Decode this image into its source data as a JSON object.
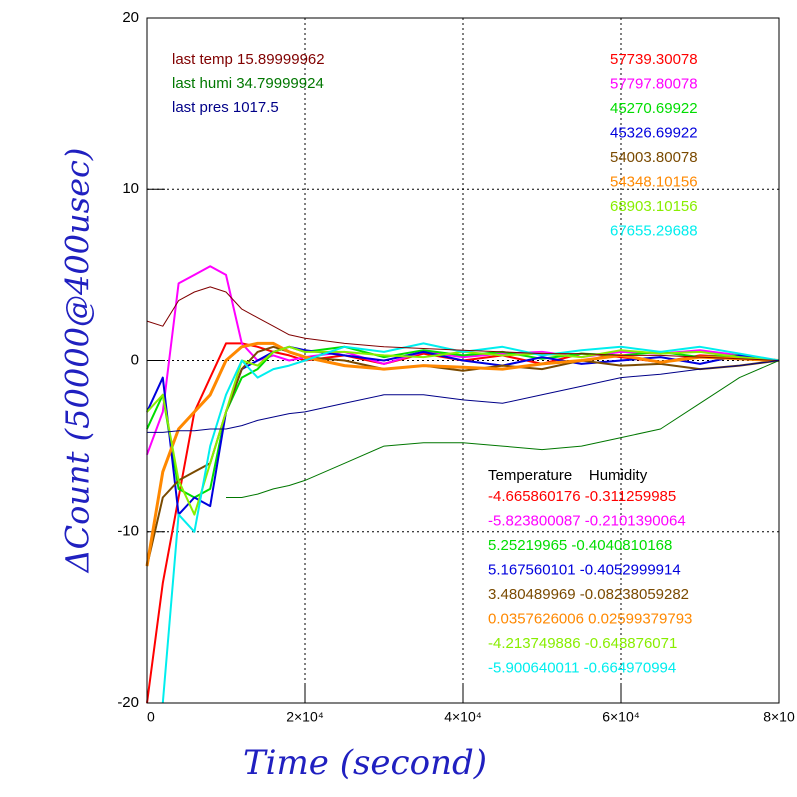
{
  "chart_data": {
    "type": "line",
    "x_label": "Time (second)",
    "y_label": "ΔCount (50000@400usec)",
    "x": [
      0,
      2000,
      4000,
      6000,
      8000,
      10000,
      12000,
      14000,
      16000,
      18000,
      20000,
      25000,
      30000,
      35000,
      40000,
      45000,
      50000,
      55000,
      60000,
      65000,
      70000,
      75000,
      80000
    ],
    "xlim": [
      0,
      80000
    ],
    "ylim": [
      -20,
      20
    ],
    "xticks": [
      0,
      {
        "value": 20000,
        "label": "2×10⁴"
      },
      {
        "value": 40000,
        "label": "4×10⁴"
      },
      {
        "value": 60000,
        "label": "6×10⁴"
      },
      {
        "value": 80000,
        "label": "8×10"
      }
    ],
    "yticks": [
      -20,
      -10,
      0,
      10,
      20
    ],
    "grid": true,
    "series": [
      {
        "color": "#ff0000",
        "width": 2,
        "values": [
          -20,
          -13,
          -8,
          -3,
          -1,
          1,
          1,
          0.8,
          0.5,
          0.3,
          0,
          0.3,
          -0.2,
          0.4,
          0,
          0.3,
          -0.2,
          0.4,
          0.2,
          -0.1,
          0.3,
          0.2,
          0
        ]
      },
      {
        "color": "#ff00ff",
        "width": 2,
        "values": [
          -5.5,
          -3,
          4.5,
          5,
          5.5,
          5,
          1,
          0,
          0.3,
          0,
          0.2,
          0.5,
          -0.2,
          0.5,
          0.2,
          0.4,
          0.5,
          0.2,
          0.5,
          0.4,
          0.6,
          0.3,
          0
        ]
      },
      {
        "color": "#00dd00",
        "width": 2,
        "values": [
          -4,
          -2,
          -7.5,
          -8,
          -7.5,
          -3,
          -1,
          -0.5,
          0.5,
          0.8,
          0.5,
          0.8,
          0.2,
          0.6,
          0.3,
          0.5,
          0.1,
          0.4,
          0.3,
          0.5,
          0.2,
          0.3,
          0
        ]
      },
      {
        "color": "#0000dd",
        "width": 2,
        "values": [
          -3,
          -1,
          -9,
          -8,
          -8.5,
          -3,
          -0.5,
          0,
          0.5,
          0.8,
          0.6,
          0.3,
          0,
          0.5,
          0,
          -0.3,
          0.2,
          -0.2,
          0,
          0.2,
          -0.2,
          0.3,
          0
        ]
      },
      {
        "color": "#7a4a00",
        "width": 2,
        "values": [
          -12,
          -8,
          -7,
          -6.5,
          -6,
          -3,
          -0.5,
          0.5,
          0.8,
          0.5,
          0.2,
          0,
          -0.5,
          -0.3,
          -0.6,
          -0.3,
          -0.5,
          0,
          -0.3,
          -0.2,
          -0.5,
          -0.3,
          0
        ]
      },
      {
        "color": "#ff8800",
        "width": 3,
        "values": [
          -12,
          -6.5,
          -4,
          -3,
          -2,
          0,
          0.8,
          1,
          1,
          0.5,
          0.2,
          -0.3,
          -0.5,
          -0.3,
          -0.4,
          -0.5,
          -0.2,
          0,
          0.3,
          -0.1,
          0.2,
          0.1,
          0
        ]
      },
      {
        "color": "#88ee00",
        "width": 2,
        "values": [
          -3,
          -2,
          -7,
          -9,
          -6,
          -3,
          0,
          -0.3,
          0.5,
          0.8,
          0.5,
          0.5,
          0.3,
          0.2,
          0.5,
          0.3,
          0.4,
          0.2,
          0.6,
          0.4,
          0.5,
          0.2,
          0
        ]
      },
      {
        "color": "#00eeee",
        "width": 2,
        "values": [
          null,
          -20,
          -9,
          -10,
          -5,
          -2,
          0,
          -1,
          -0.5,
          -0.3,
          0,
          0.8,
          0.5,
          1,
          0.5,
          0.8,
          0.3,
          0.6,
          0.8,
          0.5,
          0.8,
          0.4,
          0
        ]
      },
      {
        "color": "#800000",
        "width": 1,
        "values": [
          2.3,
          2,
          3.5,
          4,
          4.3,
          4,
          3,
          2.5,
          2,
          1.5,
          1.3,
          1,
          0.8,
          0.7,
          0.6,
          0.5,
          0.4,
          0.4,
          0.3,
          0.3,
          0.2,
          0.1,
          0
        ]
      },
      {
        "color": "#007700",
        "width": 1,
        "values": [
          null,
          null,
          null,
          null,
          null,
          -8,
          -8,
          -7.8,
          -7.5,
          -7.3,
          -7,
          -6,
          -5,
          -4.8,
          -4.8,
          -5,
          -5.2,
          -5,
          -4.5,
          -4,
          -2.5,
          -1,
          0
        ]
      },
      {
        "color": "#000088",
        "width": 1,
        "values": [
          -4.2,
          -4.2,
          -4.1,
          -4.1,
          -4,
          -4,
          -3.8,
          -3.5,
          -3.3,
          -3.1,
          -3,
          -2.5,
          -2,
          -2,
          -2.3,
          -2.5,
          -2,
          -1.5,
          -1,
          -0.8,
          -0.5,
          -0.3,
          0
        ]
      }
    ],
    "annotations_left": [
      {
        "text": "last temp 15.89999962",
        "color": "#800000"
      },
      {
        "text": "last humi 34.79999924",
        "color": "#007700"
      },
      {
        "text": "last pres 1017.5",
        "color": "#000088"
      }
    ],
    "annotations_right": [
      {
        "text": "57739.30078",
        "color": "#ff0000"
      },
      {
        "text": "57797.80078",
        "color": "#ff00ff"
      },
      {
        "text": "45270.69922",
        "color": "#00dd00"
      },
      {
        "text": "45326.69922",
        "color": "#0000dd"
      },
      {
        "text": "54003.80078",
        "color": "#7a4a00"
      },
      {
        "text": "54348.10156",
        "color": "#ff8800"
      },
      {
        "text": "68903.10156",
        "color": "#88ee00"
      },
      {
        "text": "67655.29688",
        "color": "#00eeee"
      }
    ],
    "table_header": "Temperature    Humidity",
    "table_rows": [
      {
        "text": "-4.665860176 -0.311259985",
        "color": "#ff0000"
      },
      {
        "text": "-5.823800087 -0.2101390064",
        "color": "#ff00ff"
      },
      {
        "text": "5.25219965 -0.4040810168",
        "color": "#00dd00"
      },
      {
        "text": "5.167560101 -0.4052999914",
        "color": "#0000dd"
      },
      {
        "text": "3.480489969 -0.08238059282",
        "color": "#7a4a00"
      },
      {
        "text": "0.0357626006 0.02599379793",
        "color": "#ff8800"
      },
      {
        "text": "-4.213749886 -0.648876071",
        "color": "#88ee00"
      },
      {
        "text": "-5.900640011 -0.664970994",
        "color": "#00eeee"
      }
    ]
  }
}
